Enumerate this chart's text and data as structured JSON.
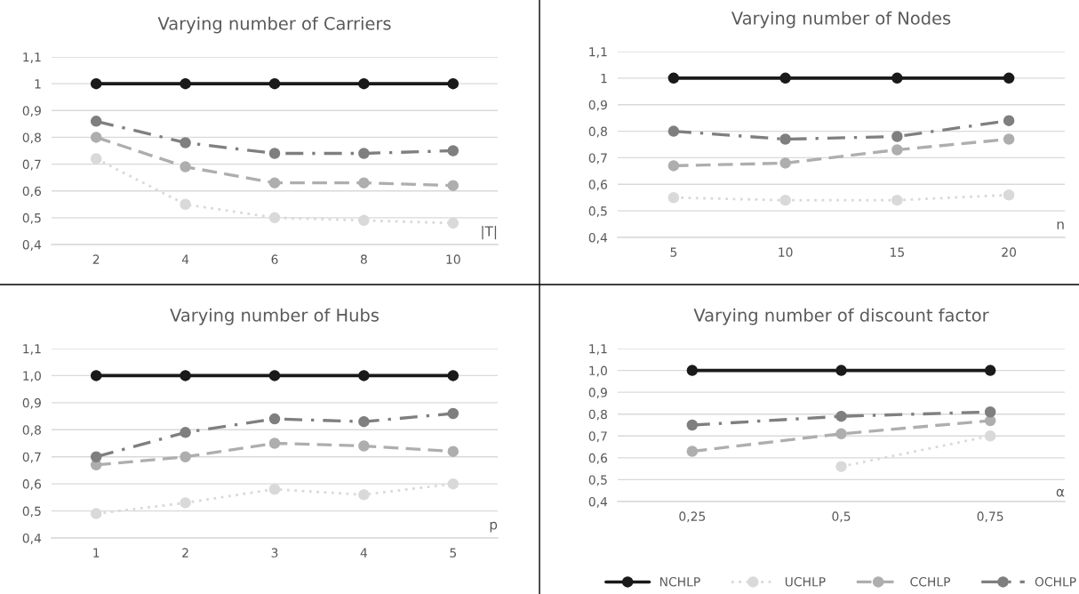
{
  "chart_data": [
    {
      "type": "line",
      "title": "Varying number of Carriers",
      "xlabel": "|T|",
      "categories": [
        "2",
        "4",
        "6",
        "8",
        "10"
      ],
      "ylim": [
        0.4,
        1.1
      ],
      "yticks": [
        {
          "value": 0.4,
          "label": "0,4"
        },
        {
          "value": 0.5,
          "label": "0,5"
        },
        {
          "value": 0.6,
          "label": "0,6"
        },
        {
          "value": 0.7,
          "label": "0,7"
        },
        {
          "value": 0.8,
          "label": "0,8"
        },
        {
          "value": 0.9,
          "label": "0,9"
        },
        {
          "value": 1,
          "label": "1"
        },
        {
          "value": 1.1,
          "label": "1,1"
        }
      ],
      "grid": "y",
      "marker": "circle",
      "legend": false,
      "series": [
        {
          "color": "#1a1a1a",
          "line_style": "solid",
          "values": [
            1,
            1,
            1,
            1,
            1
          ]
        },
        {
          "color": "#d9d9d9",
          "line_style": "dotted",
          "values": [
            0.72,
            0.55,
            0.5,
            0.49,
            0.48
          ]
        },
        {
          "color": "#aeaeae",
          "line_style": "dashed",
          "values": [
            0.8,
            0.69,
            0.63,
            0.63,
            0.62
          ]
        },
        {
          "color": "#7f7f7f",
          "line_style": "dashdot",
          "values": [
            0.86,
            0.78,
            0.74,
            0.74,
            0.75
          ]
        }
      ]
    },
    {
      "type": "line",
      "title": "Varying number of Nodes",
      "xlabel": "n",
      "categories": [
        "5",
        "10",
        "15",
        "20"
      ],
      "ylim": [
        0.4,
        1.1
      ],
      "yticks": [
        {
          "value": 0.4,
          "label": "0,4"
        },
        {
          "value": 0.5,
          "label": "0,5"
        },
        {
          "value": 0.6,
          "label": "0,6"
        },
        {
          "value": 0.7,
          "label": "0,7"
        },
        {
          "value": 0.8,
          "label": "0,8"
        },
        {
          "value": 0.9,
          "label": "0,9"
        },
        {
          "value": 1,
          "label": "1"
        },
        {
          "value": 1.1,
          "label": "1,1"
        }
      ],
      "grid": "y",
      "marker": "circle",
      "legend": false,
      "series": [
        {
          "color": "#1a1a1a",
          "line_style": "solid",
          "values": [
            1,
            1,
            1,
            1
          ]
        },
        {
          "color": "#d9d9d9",
          "line_style": "dotted",
          "values": [
            0.55,
            0.54,
            0.54,
            0.56
          ]
        },
        {
          "color": "#aeaeae",
          "line_style": "dashed",
          "values": [
            0.67,
            0.68,
            0.73,
            0.77
          ]
        },
        {
          "color": "#7f7f7f",
          "line_style": "dashdot",
          "values": [
            0.8,
            0.77,
            0.78,
            0.84
          ]
        }
      ]
    },
    {
      "type": "line",
      "title": "Varying number of Hubs",
      "xlabel": "p",
      "categories": [
        "1",
        "2",
        "3",
        "4",
        "5"
      ],
      "ylim": [
        0.4,
        1.1
      ],
      "yticks": [
        {
          "value": 0.4,
          "label": "0,4"
        },
        {
          "value": 0.5,
          "label": "0,5"
        },
        {
          "value": 0.6,
          "label": "0,6"
        },
        {
          "value": 0.7,
          "label": "0,7"
        },
        {
          "value": 0.8,
          "label": "0,8"
        },
        {
          "value": 0.9,
          "label": "0,9"
        },
        {
          "value": 1,
          "label": "1,0"
        },
        {
          "value": 1.1,
          "label": "1,1"
        }
      ],
      "grid": "y",
      "marker": "circle",
      "legend": false,
      "series": [
        {
          "color": "#1a1a1a",
          "line_style": "solid",
          "values": [
            1,
            1,
            1,
            1,
            1
          ]
        },
        {
          "color": "#d9d9d9",
          "line_style": "dotted",
          "values": [
            0.49,
            0.53,
            0.58,
            0.56,
            0.6
          ]
        },
        {
          "color": "#aeaeae",
          "line_style": "dashed",
          "values": [
            0.67,
            0.7,
            0.75,
            0.74,
            0.72
          ]
        },
        {
          "color": "#7f7f7f",
          "line_style": "dashdot",
          "values": [
            0.7,
            0.79,
            0.84,
            0.83,
            0.86
          ]
        }
      ]
    },
    {
      "type": "line",
      "title": "Varying number of discount factor",
      "xlabel": "α",
      "categories": [
        "0,25",
        "0,5",
        "0,75"
      ],
      "ylim": [
        0.4,
        1.1
      ],
      "yticks": [
        {
          "value": 0.4,
          "label": "0,4"
        },
        {
          "value": 0.5,
          "label": "0,5"
        },
        {
          "value": 0.6,
          "label": "0,6"
        },
        {
          "value": 0.7,
          "label": "0,7"
        },
        {
          "value": 0.8,
          "label": "0,8"
        },
        {
          "value": 0.9,
          "label": "0,9"
        },
        {
          "value": 1,
          "label": "1,0"
        },
        {
          "value": 1.1,
          "label": "1,1"
        }
      ],
      "grid": "y",
      "marker": "circle",
      "legend": "bottom",
      "series": [
        {
          "name": "NCHLP",
          "color": "#1a1a1a",
          "line_style": "solid",
          "values": [
            1,
            1,
            1
          ]
        },
        {
          "name": "UCHLP",
          "color": "#d9d9d9",
          "line_style": "dotted",
          "values": [
            null,
            0.56,
            0.7
          ]
        },
        {
          "name": "CCHLP",
          "color": "#aeaeae",
          "line_style": "dashed",
          "values": [
            0.63,
            0.71,
            0.77
          ]
        },
        {
          "name": "OCHLP",
          "color": "#7f7f7f",
          "line_style": "dashdot",
          "values": [
            0.75,
            0.79,
            0.81
          ]
        }
      ]
    }
  ]
}
